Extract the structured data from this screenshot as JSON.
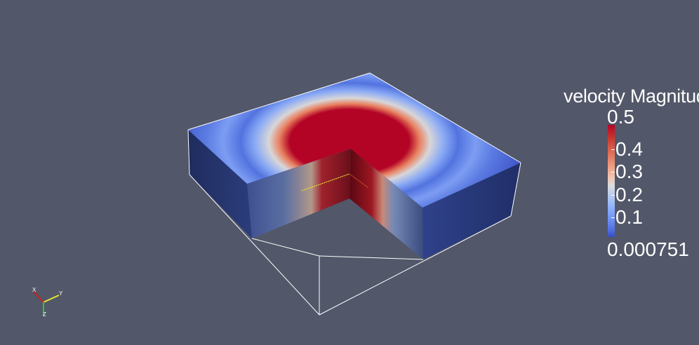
{
  "legend": {
    "title": "velocity Magnitude",
    "max_label": "0.5",
    "tick_labels": [
      "0.4",
      "0.3",
      "0.2",
      "0.1"
    ],
    "min_label": "0.000751"
  },
  "axes": {
    "x": "X",
    "y": "Y",
    "z": "Z"
  },
  "colors": {
    "background": "#525769",
    "low": "#3b4cc0",
    "mid": "#dddcdc",
    "high": "#b40426"
  }
}
